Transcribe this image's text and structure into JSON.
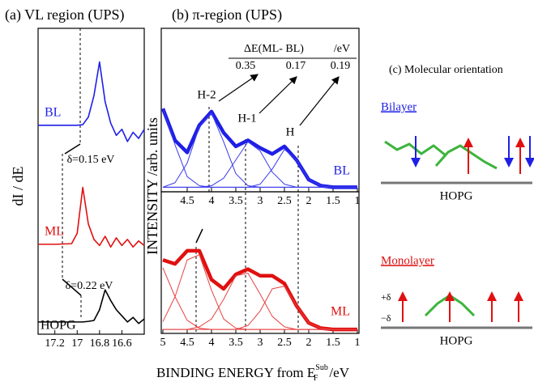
{
  "chart_data": [
    {
      "type": "line",
      "title": "(a) VL region (UPS)",
      "ylabel": "dI / dE",
      "xlim": [
        17.35,
        16.4
      ],
      "xticks": [
        17.2,
        17,
        16.8,
        16.6
      ],
      "ylim": [
        0,
        10
      ],
      "x": [
        17.35,
        17.2,
        17.05,
        17.0,
        16.95,
        16.9,
        16.85,
        16.8,
        16.75,
        16.7,
        16.65,
        16.6,
        16.55,
        16.5,
        16.45,
        16.4
      ],
      "series": [
        {
          "name": "BL",
          "color": "#1f1fe6",
          "values": [
            6.83,
            6.83,
            6.83,
            6.83,
            6.85,
            7.1,
            7.8,
            8.9,
            7.6,
            6.9,
            6.5,
            6.7,
            6.3,
            6.6,
            6.4,
            6.7
          ]
        },
        {
          "name": "ML",
          "color": "#e01010",
          "values": [
            2.94,
            2.94,
            2.96,
            3.3,
            4.8,
            3.6,
            3.1,
            2.9,
            3.2,
            2.85,
            3.15,
            2.9,
            3.1,
            2.85,
            3.05,
            2.9
          ]
        },
        {
          "name": "HOPG",
          "color": "#000000",
          "values": [
            0.4,
            0.4,
            0.4,
            0.4,
            0.4,
            0.42,
            0.45,
            0.8,
            1.45,
            1.1,
            0.8,
            0.6,
            0.4,
            0.55,
            0.35,
            0.5
          ]
        }
      ],
      "annotations": [
        "δ=0.15 eV",
        "δ=0.22 eV"
      ]
    },
    {
      "type": "line",
      "title": "(b) π-region (UPS)",
      "ylabel": "INTENSITY /arb. units",
      "xlim": [
        5,
        1
      ],
      "xticks": [
        4.5,
        4,
        3.5,
        3,
        2.5,
        2,
        1.5,
        1
      ],
      "ylim": [
        -0.03,
        1.05
      ],
      "x": [
        5,
        4.75,
        4.5,
        4.25,
        4,
        3.75,
        3.5,
        3.25,
        3,
        2.75,
        2.5,
        2.25,
        2,
        1.75,
        1.5,
        1.25,
        1
      ],
      "series": [
        {
          "name": "BL",
          "color": "#1f1fe6",
          "values": [
            0.52,
            0.31,
            0.23,
            0.41,
            0.5,
            0.36,
            0.27,
            0.31,
            0.26,
            0.22,
            0.27,
            0.18,
            0.05,
            0.01,
            0,
            0,
            0
          ]
        },
        {
          "color": "#3a3aee",
          "values": [
            0.52,
            0.28,
            0.07,
            0.01,
            0,
            0,
            0,
            0,
            0,
            0,
            0,
            0,
            0,
            0,
            0,
            0,
            0
          ]
        },
        {
          "color": "#3a3aee",
          "values": [
            0,
            0.03,
            0.16,
            0.4,
            0.49,
            0.3,
            0.09,
            0.01,
            0,
            0,
            0,
            0,
            0,
            0,
            0,
            0,
            0
          ]
        },
        {
          "color": "#3a3aee",
          "values": [
            0,
            0,
            0,
            0,
            0.01,
            0.06,
            0.18,
            0.3,
            0.24,
            0.1,
            0.02,
            0,
            0,
            0,
            0,
            0,
            0
          ]
        },
        {
          "color": "#3a3aee",
          "values": [
            0,
            0,
            0,
            0,
            0,
            0,
            0,
            0,
            0.02,
            0.12,
            0.25,
            0.18,
            0.05,
            0.01,
            0,
            0,
            0
          ]
        }
      ],
      "annotations": {
        "peaks": [
          "H-2",
          "H-1",
          "H"
        ],
        "table_header": [
          "ΔE(ML- BL)",
          "/eV"
        ],
        "table_values": [
          0.35,
          0.17,
          0.19
        ]
      }
    },
    {
      "type": "line",
      "xlim": [
        5,
        1
      ],
      "xticks": [
        5,
        4.5,
        4,
        3.5,
        3,
        2.5,
        2,
        1.5,
        1
      ],
      "ylim": [
        -0.03,
        1.05
      ],
      "x": [
        5,
        4.75,
        4.5,
        4.25,
        4,
        3.75,
        3.5,
        3.25,
        3,
        2.75,
        2.5,
        2.25,
        2,
        1.75,
        1.5,
        1.25,
        1
      ],
      "series": [
        {
          "name": "ML",
          "color": "#e01010",
          "values": [
            0.53,
            0.5,
            0.6,
            0.6,
            0.38,
            0.31,
            0.42,
            0.46,
            0.41,
            0.41,
            0.35,
            0.18,
            0.05,
            0.01,
            0,
            0,
            0
          ]
        },
        {
          "color": "#e84040",
          "values": [
            0.47,
            0.25,
            0.07,
            0.01,
            0,
            0,
            0,
            0,
            0,
            0,
            0,
            0,
            0,
            0,
            0,
            0,
            0
          ]
        },
        {
          "color": "#e84040",
          "values": [
            0.06,
            0.25,
            0.53,
            0.57,
            0.3,
            0.08,
            0.01,
            0,
            0,
            0,
            0,
            0,
            0,
            0,
            0,
            0,
            0
          ]
        },
        {
          "color": "#e84040",
          "values": [
            0,
            0,
            0,
            0.02,
            0.08,
            0.23,
            0.41,
            0.43,
            0.27,
            0.1,
            0.02,
            0,
            0,
            0,
            0,
            0,
            0
          ]
        },
        {
          "color": "#e84040",
          "values": [
            0,
            0,
            0,
            0,
            0,
            0,
            0,
            0.03,
            0.14,
            0.31,
            0.33,
            0.18,
            0.05,
            0.01,
            0,
            0,
            0
          ]
        }
      ]
    }
  ],
  "figure": {
    "xlabel": "BINDING ENERGY from E",
    "xlabel_sub": "F",
    "xlabel_sup": "Sub",
    "xlabel_unit": "/eV"
  },
  "diagram": {
    "title": "(c) Molecular orientation",
    "bilayer": {
      "label": "Bilayer",
      "substrate": "HOPG"
    },
    "monolayer": {
      "label": "Monolayer",
      "plus": "+δ",
      "minus": "−δ",
      "substrate": "HOPG"
    }
  }
}
